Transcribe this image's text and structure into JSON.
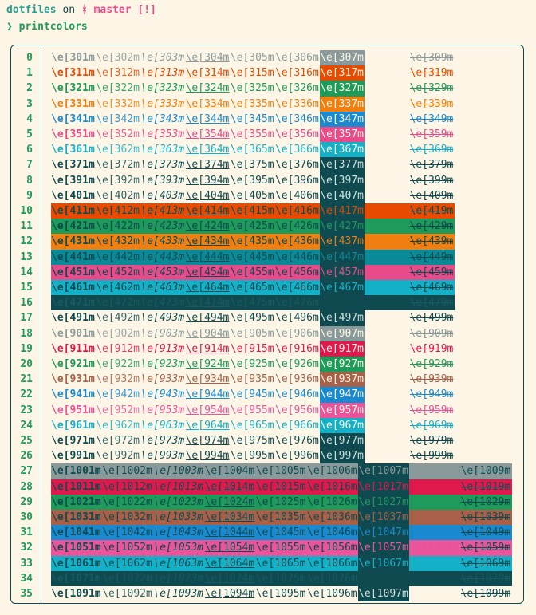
{
  "prompt": {
    "dir": "dotfiles",
    "on": "on",
    "branch_icon": "ᚼ",
    "branch": "master",
    "status": "[!]",
    "arrow": "❯",
    "command": "printcolors"
  },
  "colors": {
    "fg": "#0e4a50",
    "bg": "#fdf6e6",
    "accent": "#1e9a5a",
    "dir": "#2a9d8f",
    "branch": "#e84a8a"
  },
  "base_codes": [
    30,
    31,
    32,
    33,
    34,
    35,
    36,
    37,
    39,
    40,
    41,
    42,
    43,
    44,
    45,
    46,
    47,
    49,
    90,
    91,
    92,
    93,
    94,
    95,
    96,
    97,
    99,
    100,
    101,
    102,
    103,
    104,
    105,
    106,
    107,
    109
  ],
  "row_numbers": [
    "0",
    "1",
    "2",
    "3",
    "4",
    "5",
    "6",
    "7",
    "8",
    "9",
    "10",
    "11",
    "12",
    "13",
    "14",
    "15",
    "16",
    "17",
    "18",
    "19",
    "20",
    "21",
    "22",
    "23",
    "24",
    "25",
    "26",
    "27",
    "28",
    "29",
    "30",
    "31",
    "32",
    "33",
    "34",
    "35"
  ],
  "fg_colors": [
    "#8a9a9a",
    "#e84a00",
    "#1e9a5a",
    "#f07f10",
    "#1a8ad0",
    "#e84a8a",
    "#14b0c8",
    "#0e4a50",
    "#0e4a50",
    "#0e4a50",
    "#0e4a50",
    "#0e4a50",
    "#0e4a50",
    "#0e4a50",
    "#0e4a50",
    "#0e4a50",
    "#0e4a50",
    "#0e4a50",
    "#8a9a9a",
    "#e0194c",
    "#1e9a5a",
    "#a86048",
    "#1a8ad0",
    "#e8559a",
    "#14b0c8",
    "#0e4a50",
    "#0e4a50",
    "#0e4a50",
    "#0e4a50",
    "#0e4a50",
    "#0e4a50",
    "#0e4a50",
    "#0e4a50",
    "#0e4a50",
    "#0e4a50",
    "#0e4a50"
  ],
  "bg_colors": [
    null,
    null,
    null,
    null,
    null,
    null,
    null,
    null,
    null,
    null,
    "#e84a00",
    "#1e9a5a",
    "#f07f10",
    "#0a8a96",
    "#e84a8a",
    "#14b0c8",
    "#0e4a50",
    null,
    null,
    null,
    null,
    null,
    null,
    null,
    null,
    null,
    null,
    "#8a9a9a",
    "#e0194c",
    "#1e9a5a",
    "#a86048",
    "#1a8ad0",
    "#e8559a",
    "#14b0c8",
    "#0e4a50",
    null
  ],
  "cell_suffixes": [
    "1m",
    "2m",
    "3m",
    "4m",
    "5m",
    "6m",
    "7m",
    "8m",
    "9m"
  ],
  "escape_prefix": "\\e["
}
